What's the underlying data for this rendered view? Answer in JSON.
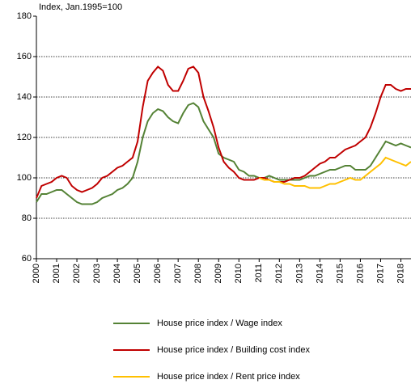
{
  "chart_data": {
    "type": "line",
    "title": "Index, Jan.1995=100",
    "x": [
      2000,
      2000.25,
      2000.5,
      2000.75,
      2001,
      2001.25,
      2001.5,
      2001.75,
      2002,
      2002.25,
      2002.5,
      2002.75,
      2003,
      2003.25,
      2003.5,
      2003.75,
      2004,
      2004.25,
      2004.5,
      2004.75,
      2005,
      2005.25,
      2005.5,
      2005.75,
      2006,
      2006.25,
      2006.5,
      2006.75,
      2007,
      2007.25,
      2007.5,
      2007.75,
      2008,
      2008.25,
      2008.5,
      2008.75,
      2009,
      2009.25,
      2009.5,
      2009.75,
      2010,
      2010.25,
      2010.5,
      2010.75,
      2011,
      2011.25,
      2011.5,
      2011.75,
      2012,
      2012.25,
      2012.5,
      2012.75,
      2013,
      2013.25,
      2013.5,
      2013.75,
      2014,
      2014.25,
      2014.5,
      2014.75,
      2015,
      2015.25,
      2015.5,
      2015.75,
      2016,
      2016.25,
      2016.5,
      2016.75,
      2017,
      2017.25,
      2017.5,
      2017.75,
      2018,
      2018.25,
      2018.5
    ],
    "series": [
      {
        "name": "House price index / Wage index",
        "color": "#548235",
        "values": [
          88,
          92,
          92,
          93,
          94,
          94,
          92,
          90,
          88,
          87,
          87,
          87,
          88,
          90,
          91,
          92,
          94,
          95,
          97,
          100,
          108,
          120,
          128,
          132,
          134,
          133,
          130,
          128,
          127,
          132,
          136,
          137,
          135,
          128,
          124,
          120,
          112,
          110,
          109,
          108,
          104,
          103,
          101,
          101,
          100,
          100,
          101,
          100,
          99,
          99,
          99,
          99,
          99,
          100,
          101,
          101,
          102,
          103,
          104,
          104,
          105,
          106,
          106,
          104,
          104,
          104,
          106,
          110,
          114,
          118,
          117,
          116,
          117,
          116,
          115
        ]
      },
      {
        "name": "House price index / Building cost index",
        "color": "#c00000",
        "values": [
          90,
          96,
          97,
          98,
          100,
          101,
          100,
          96,
          94,
          93,
          94,
          95,
          97,
          100,
          101,
          103,
          105,
          106,
          108,
          110,
          118,
          135,
          148,
          152,
          155,
          153,
          146,
          143,
          143,
          148,
          154,
          155,
          152,
          140,
          133,
          125,
          115,
          108,
          105,
          103,
          100,
          99,
          99,
          99,
          100,
          100,
          99,
          98,
          98,
          98,
          99,
          100,
          100,
          101,
          103,
          105,
          107,
          108,
          110,
          110,
          112,
          114,
          115,
          116,
          118,
          120,
          125,
          132,
          140,
          146,
          146,
          144,
          143,
          144,
          144
        ]
      },
      {
        "name": "House price index / Rent price index",
        "color": "#ffc000",
        "values": [
          null,
          null,
          null,
          null,
          null,
          null,
          null,
          null,
          null,
          null,
          null,
          null,
          null,
          null,
          null,
          null,
          null,
          null,
          null,
          null,
          null,
          null,
          null,
          null,
          null,
          null,
          null,
          null,
          null,
          null,
          null,
          null,
          null,
          null,
          null,
          null,
          null,
          null,
          null,
          null,
          null,
          null,
          null,
          null,
          100,
          99,
          99,
          98,
          98,
          97,
          97,
          96,
          96,
          96,
          95,
          95,
          95,
          96,
          97,
          97,
          98,
          99,
          100,
          99,
          99,
          101,
          103,
          105,
          107,
          110,
          109,
          108,
          107,
          106,
          108
        ]
      }
    ],
    "xlim": [
      2000,
      2018.5
    ],
    "xticks": [
      2000,
      2001,
      2002,
      2003,
      2004,
      2005,
      2006,
      2007,
      2008,
      2009,
      2010,
      2011,
      2012,
      2013,
      2014,
      2015,
      2016,
      2017,
      2018
    ],
    "ylim": [
      60,
      180
    ],
    "yticks": [
      60,
      80,
      100,
      120,
      140,
      160,
      180
    ],
    "grid": true
  }
}
